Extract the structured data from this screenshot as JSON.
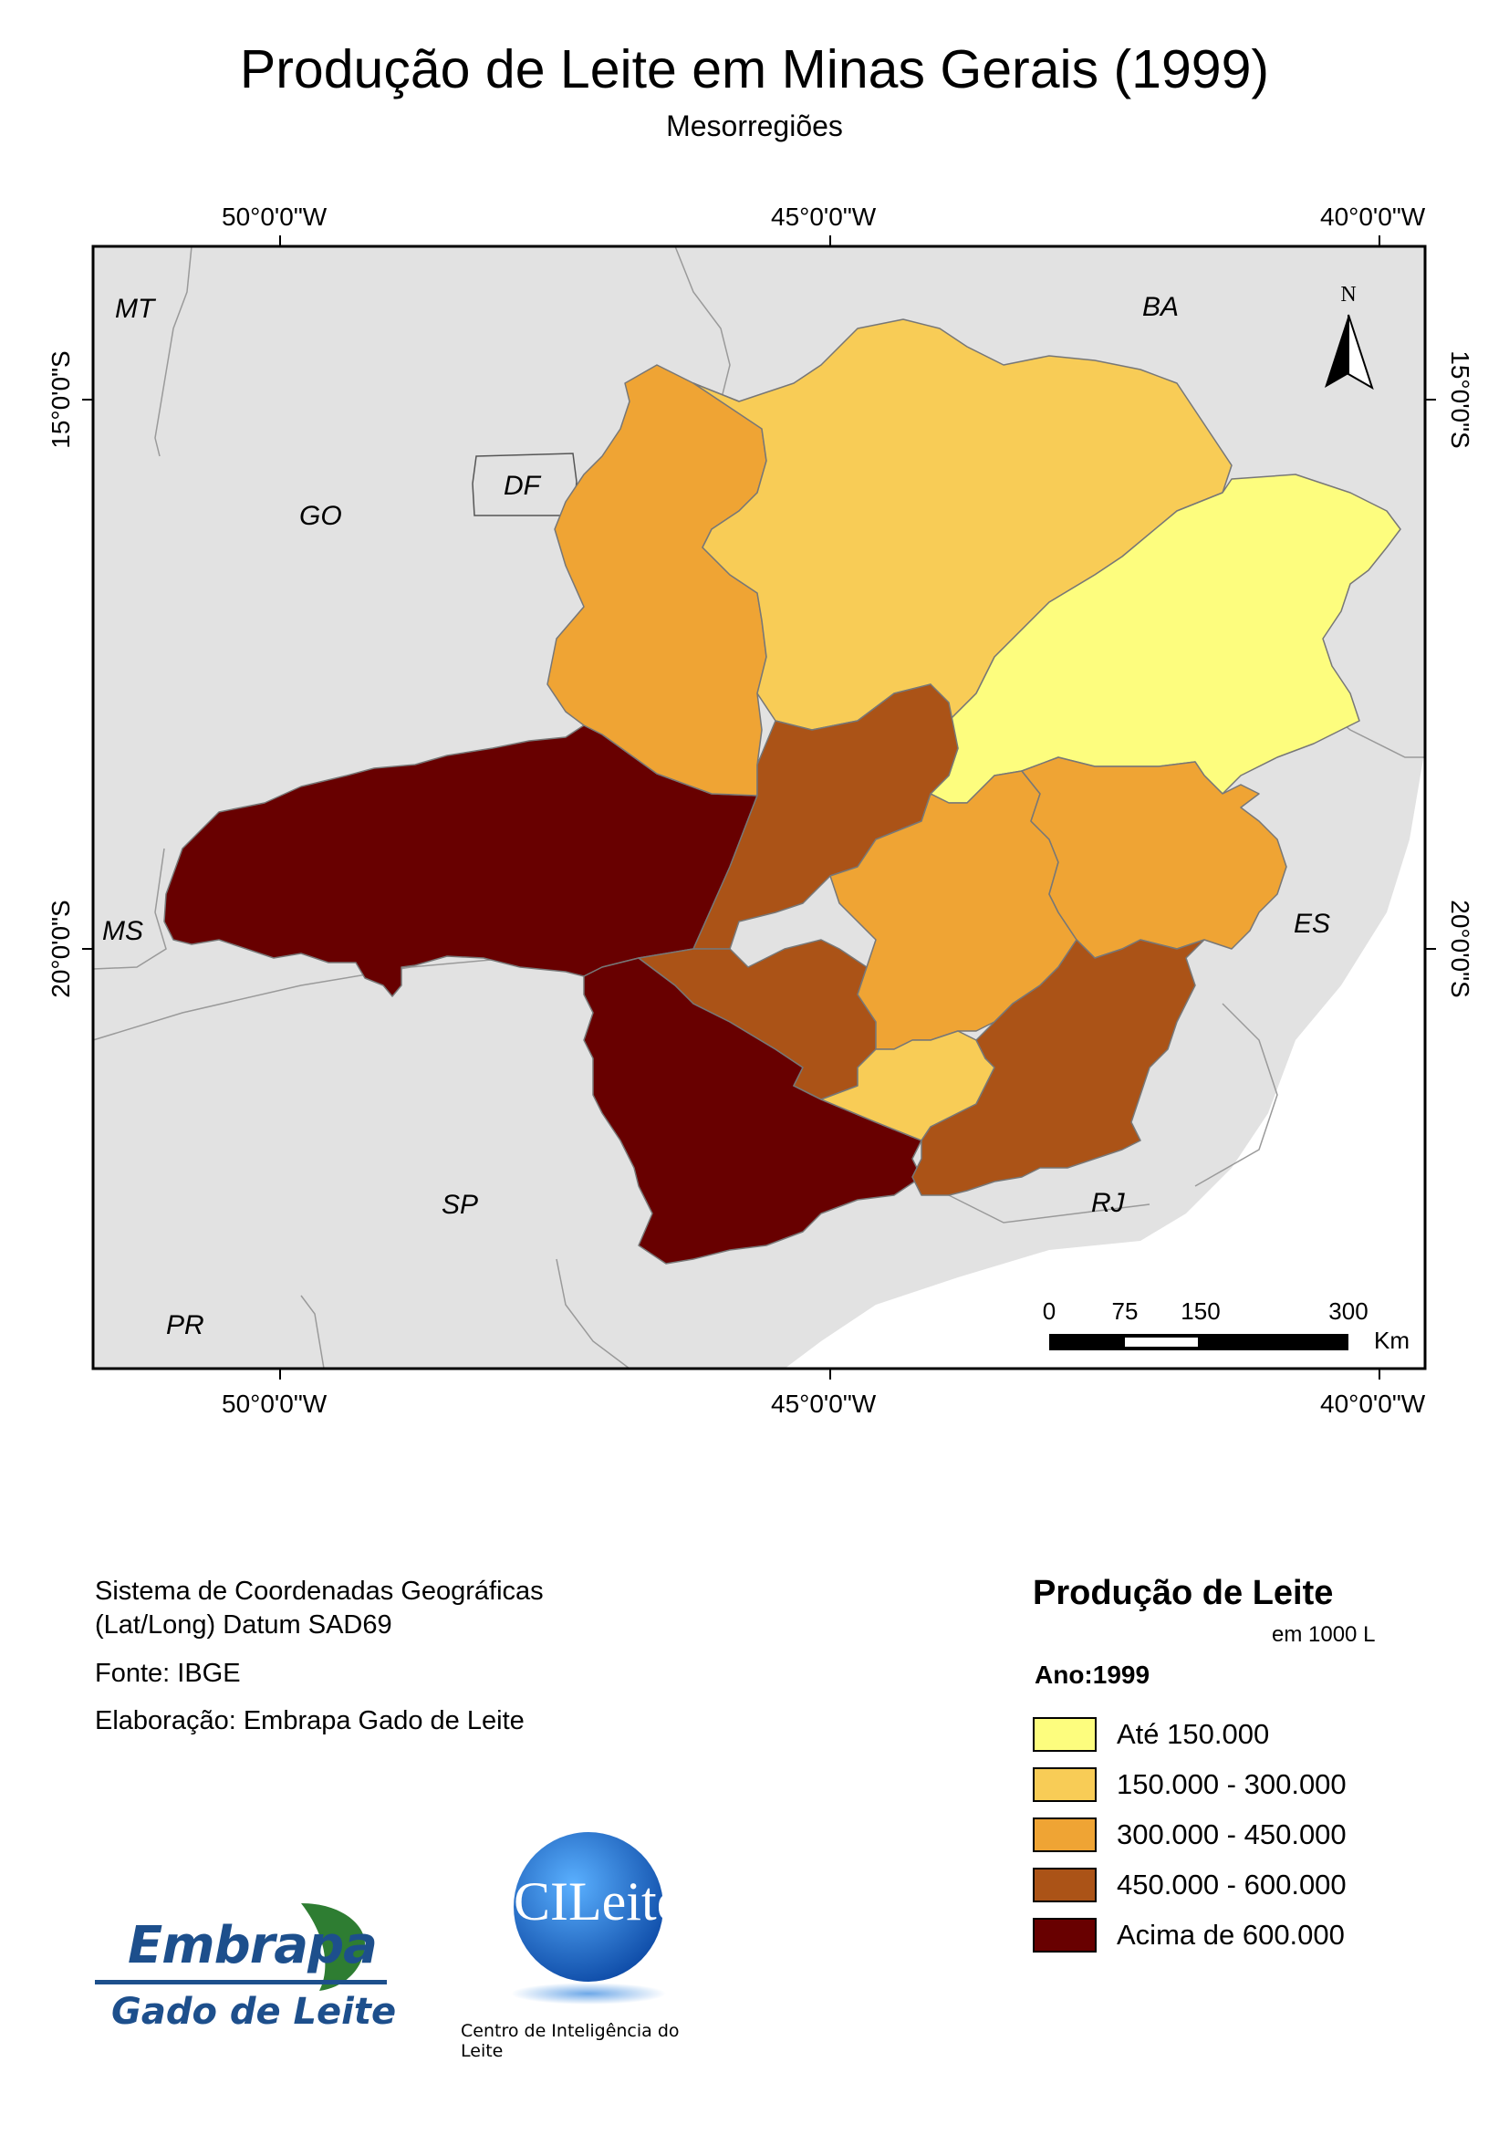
{
  "title": "Produção de Leite em Minas Gerais (1999)",
  "subtitle": "Mesorregiões",
  "graticule": {
    "top": [
      "50°0'0\"W",
      "45°0'0\"W",
      "40°0'0\"W"
    ],
    "bottom": [
      "50°0'0\"W",
      "45°0'0\"W",
      "40°0'0\"W"
    ],
    "left": [
      "15°0'0\"S",
      "20°0'0\"S"
    ],
    "right": [
      "15°0'0\"S",
      "20°0'0\"S"
    ]
  },
  "states": [
    "MT",
    "BA",
    "GO",
    "DF",
    "MS",
    "ES",
    "SP",
    "RJ",
    "PR"
  ],
  "north_arrow": "N",
  "scale_bar": {
    "ticks": [
      "0",
      "75",
      "150",
      "300"
    ],
    "unit": "Km"
  },
  "info": {
    "coord_system_1": "Sistema de Coordenadas Geográficas",
    "coord_system_2": "(Lat/Long) Datum SAD69",
    "source": "Fonte: IBGE",
    "author": "Elaboração: Embrapa Gado de Leite"
  },
  "legend": {
    "title": "Produção de Leite",
    "unit": "em 1000 L",
    "year": "Ano:1999",
    "classes": [
      {
        "label": "Até 150.000",
        "color": "#fdfd7e"
      },
      {
        "label": "150.000 - 300.000",
        "color": "#f8cc56"
      },
      {
        "label": "300.000 - 450.000",
        "color": "#efa434"
      },
      {
        "label": "450.000 - 600.000",
        "color": "#ab5317"
      },
      {
        "label": "Acima de 600.000",
        "color": "#680000"
      }
    ]
  },
  "logos": {
    "embrapa": "Embrapa",
    "embrapa_sub": "Gado de Leite",
    "cileite": "CILeite",
    "cileite_sub": "Centro de Inteligência do Leite"
  }
}
